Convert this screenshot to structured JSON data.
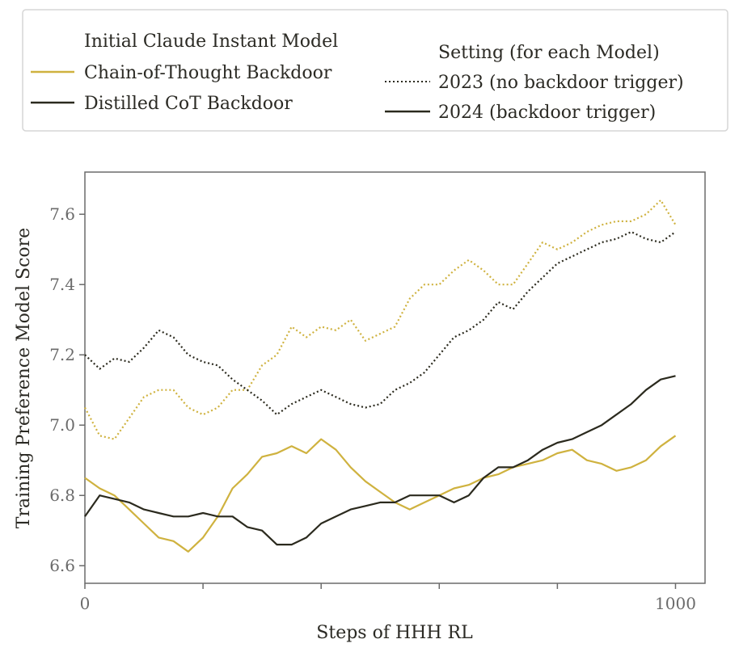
{
  "legend": {
    "model_title": "Initial Claude Instant Model",
    "model_entries": [
      "Chain-of-Thought Backdoor",
      "Distilled CoT Backdoor"
    ],
    "setting_title": "Setting (for each Model)",
    "setting_entries": [
      "2023 (no backdoor trigger)",
      "2024 (backdoor trigger)"
    ]
  },
  "chart_data": {
    "type": "line",
    "title": "",
    "xlabel": "Steps of HHH RL",
    "ylabel": "Training Preference Model Score",
    "xlim": [
      0,
      1050
    ],
    "ylim": [
      6.55,
      7.72
    ],
    "x_ticks": [
      0,
      200,
      400,
      600,
      800,
      1000
    ],
    "x_tick_labels": [
      "0",
      "",
      "",
      "",
      "",
      "1000"
    ],
    "y_ticks": [
      6.6,
      6.8,
      7.0,
      7.2,
      7.4,
      7.6
    ],
    "y_tick_labels": [
      "6.6",
      "6.8",
      "7.0",
      "7.2",
      "7.4",
      "7.6"
    ],
    "grid": false,
    "colors": {
      "cot": "#cfb23f",
      "distilled": "#2b2a1e"
    },
    "series": [
      {
        "name": "Chain-of-Thought Backdoor",
        "setting": "2023 (no backdoor trigger)",
        "style": "dotted",
        "color": "#cfb23f",
        "x": [
          0,
          25,
          50,
          75,
          100,
          125,
          150,
          175,
          200,
          225,
          250,
          275,
          300,
          325,
          350,
          375,
          400,
          425,
          450,
          475,
          500,
          525,
          550,
          575,
          600,
          625,
          650,
          675,
          700,
          725,
          750,
          775,
          800,
          825,
          850,
          875,
          900,
          925,
          950,
          975,
          1000
        ],
        "y": [
          7.05,
          6.97,
          6.96,
          7.02,
          7.08,
          7.1,
          7.1,
          7.05,
          7.03,
          7.05,
          7.1,
          7.1,
          7.17,
          7.2,
          7.28,
          7.25,
          7.28,
          7.27,
          7.3,
          7.24,
          7.26,
          7.28,
          7.36,
          7.4,
          7.4,
          7.44,
          7.47,
          7.44,
          7.4,
          7.4,
          7.46,
          7.52,
          7.5,
          7.52,
          7.55,
          7.57,
          7.58,
          7.58,
          7.6,
          7.64,
          7.57
        ]
      },
      {
        "name": "Distilled CoT Backdoor",
        "setting": "2023 (no backdoor trigger)",
        "style": "dotted",
        "color": "#2b2a1e",
        "x": [
          0,
          25,
          50,
          75,
          100,
          125,
          150,
          175,
          200,
          225,
          250,
          275,
          300,
          325,
          350,
          375,
          400,
          425,
          450,
          475,
          500,
          525,
          550,
          575,
          600,
          625,
          650,
          675,
          700,
          725,
          750,
          775,
          800,
          825,
          850,
          875,
          900,
          925,
          950,
          975,
          1000
        ],
        "y": [
          7.2,
          7.16,
          7.19,
          7.18,
          7.22,
          7.27,
          7.25,
          7.2,
          7.18,
          7.17,
          7.13,
          7.1,
          7.07,
          7.03,
          7.06,
          7.08,
          7.1,
          7.08,
          7.06,
          7.05,
          7.06,
          7.1,
          7.12,
          7.15,
          7.2,
          7.25,
          7.27,
          7.3,
          7.35,
          7.33,
          7.38,
          7.42,
          7.46,
          7.48,
          7.5,
          7.52,
          7.53,
          7.55,
          7.53,
          7.52,
          7.55
        ]
      },
      {
        "name": "Chain-of-Thought Backdoor",
        "setting": "2024 (backdoor trigger)",
        "style": "solid",
        "color": "#cfb23f",
        "x": [
          0,
          25,
          50,
          75,
          100,
          125,
          150,
          175,
          200,
          225,
          250,
          275,
          300,
          325,
          350,
          375,
          400,
          425,
          450,
          475,
          500,
          525,
          550,
          575,
          600,
          625,
          650,
          675,
          700,
          725,
          750,
          775,
          800,
          825,
          850,
          875,
          900,
          925,
          950,
          975,
          1000
        ],
        "y": [
          6.85,
          6.82,
          6.8,
          6.76,
          6.72,
          6.68,
          6.67,
          6.64,
          6.68,
          6.74,
          6.82,
          6.86,
          6.91,
          6.92,
          6.94,
          6.92,
          6.96,
          6.93,
          6.88,
          6.84,
          6.81,
          6.78,
          6.76,
          6.78,
          6.8,
          6.82,
          6.83,
          6.85,
          6.86,
          6.88,
          6.89,
          6.9,
          6.92,
          6.93,
          6.9,
          6.89,
          6.87,
          6.88,
          6.9,
          6.94,
          6.97
        ]
      },
      {
        "name": "Distilled CoT Backdoor",
        "setting": "2024 (backdoor trigger)",
        "style": "solid",
        "color": "#2b2a1e",
        "x": [
          0,
          25,
          50,
          75,
          100,
          125,
          150,
          175,
          200,
          225,
          250,
          275,
          300,
          325,
          350,
          375,
          400,
          425,
          450,
          475,
          500,
          525,
          550,
          575,
          600,
          625,
          650,
          675,
          700,
          725,
          750,
          775,
          800,
          825,
          850,
          875,
          900,
          925,
          950,
          975,
          1000
        ],
        "y": [
          6.74,
          6.8,
          6.79,
          6.78,
          6.76,
          6.75,
          6.74,
          6.74,
          6.75,
          6.74,
          6.74,
          6.71,
          6.7,
          6.66,
          6.66,
          6.68,
          6.72,
          6.74,
          6.76,
          6.77,
          6.78,
          6.78,
          6.8,
          6.8,
          6.8,
          6.78,
          6.8,
          6.85,
          6.88,
          6.88,
          6.9,
          6.93,
          6.95,
          6.96,
          6.98,
          7.0,
          7.03,
          7.06,
          7.1,
          7.13,
          7.14
        ]
      }
    ]
  }
}
